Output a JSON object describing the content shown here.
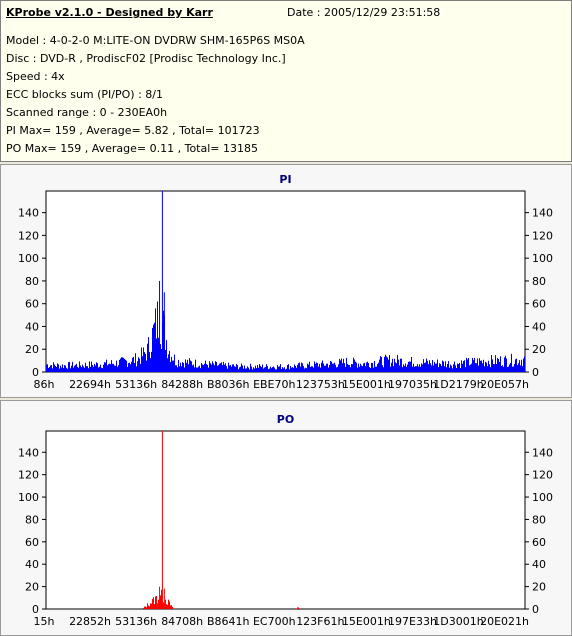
{
  "header": {
    "title": "KProbe v2.1.0 - Designed by Karr",
    "date": "Date : 2005/12/29 23:51:58",
    "lines": [
      "Model : 4-0-2-0 M:LITE-ON DVDRW SHM-165P6S MS0A",
      "Disc : DVD-R , ProdiscF02 [Prodisc Technology Inc.]",
      "Speed : 4x",
      "ECC blocks sum (PI/PO) : 8/1",
      "Scanned range : 0 - 230EA0h",
      "PI Max= 159 , Average= 5.82 , Total= 101723",
      "PO Max= 159 , Average= 0.11 , Total= 13185"
    ]
  },
  "chart_data": [
    {
      "type": "bar",
      "title": "PI",
      "color": "#0000ff",
      "ylim": [
        0,
        159
      ],
      "yticks": [
        0,
        20,
        40,
        60,
        80,
        100,
        120,
        140
      ],
      "xticks": [
        "86h",
        "22694h",
        "53136h",
        "84288h",
        "B8036h",
        "EBE70h",
        "123753h",
        "15E001h",
        "197035h",
        "1D2179h",
        "20E057h"
      ],
      "grid": false,
      "profile": [
        [
          0,
          8
        ],
        [
          0.03,
          7
        ],
        [
          0.1,
          8
        ],
        [
          0.15,
          10
        ],
        [
          0.19,
          14
        ],
        [
          0.21,
          22
        ],
        [
          0.225,
          45
        ],
        [
          0.235,
          62
        ],
        [
          0.245,
          48
        ],
        [
          0.255,
          25
        ],
        [
          0.27,
          12
        ],
        [
          0.32,
          9
        ],
        [
          0.4,
          6
        ],
        [
          0.5,
          6
        ],
        [
          0.6,
          9
        ],
        [
          0.63,
          11
        ],
        [
          0.66,
          9
        ],
        [
          0.72,
          13
        ],
        [
          0.76,
          11
        ],
        [
          0.85,
          9
        ],
        [
          0.92,
          12
        ],
        [
          0.98,
          13
        ],
        [
          1,
          14
        ]
      ],
      "spikes": [
        [
          0.242,
          159
        ],
        [
          0.236,
          80
        ],
        [
          0.246,
          70
        ]
      ]
    },
    {
      "type": "bar",
      "title": "PO",
      "color": "#ff0000",
      "ylim": [
        0,
        159
      ],
      "yticks": [
        0,
        20,
        40,
        60,
        80,
        100,
        120,
        140
      ],
      "xticks": [
        "15h",
        "22852h",
        "53136h",
        "84708h",
        "B8641h",
        "EC700h",
        "123F61h",
        "15E001h",
        "197E33h",
        "1D3001h",
        "20E021h"
      ],
      "grid": false,
      "profile": [
        [
          0,
          0
        ],
        [
          0.2,
          0
        ],
        [
          0.205,
          2
        ],
        [
          0.215,
          6
        ],
        [
          0.23,
          12
        ],
        [
          0.24,
          14
        ],
        [
          0.25,
          10
        ],
        [
          0.26,
          4
        ],
        [
          0.265,
          0
        ],
        [
          0.3,
          0
        ],
        [
          0.52,
          0
        ],
        [
          0.525,
          2
        ],
        [
          0.53,
          0
        ],
        [
          1,
          0
        ]
      ],
      "spikes": [
        [
          0.242,
          159
        ],
        [
          0.236,
          20
        ],
        [
          0.246,
          18
        ]
      ]
    }
  ]
}
